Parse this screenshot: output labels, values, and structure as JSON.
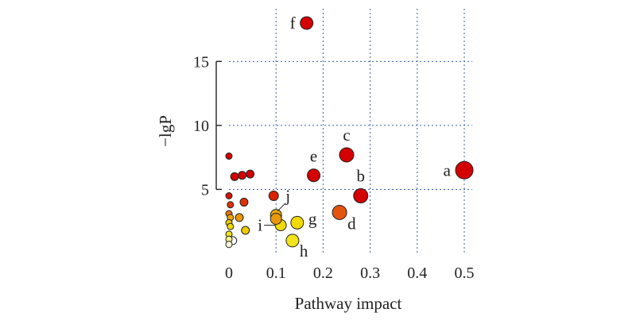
{
  "chart_data": {
    "type": "scatter",
    "xlabel": "Pathway impact",
    "ylabel": "−lgP",
    "xlim": [
      0,
      0.5
    ],
    "ylim": [
      0,
      18
    ],
    "x_ticks": [
      0,
      0.1,
      0.2,
      0.3,
      0.4,
      0.5
    ],
    "x_tick_labels": [
      "0",
      "0.1",
      "0.2",
      "0.3",
      "0.4",
      "0.5"
    ],
    "y_ticks": [
      5,
      10,
      15
    ],
    "y_tick_labels": [
      "5",
      "10",
      "15"
    ],
    "grid": true,
    "color_scale": [
      "#ffffff",
      "#f0e000",
      "#e87010",
      "#d40000"
    ],
    "points": [
      {
        "x": 0.165,
        "y": 18.0,
        "r": 8,
        "c": 1.0,
        "label": "f",
        "label_side": "left"
      },
      {
        "x": 0.5,
        "y": 6.5,
        "r": 11,
        "c": 1.0,
        "label": "a",
        "label_side": "left"
      },
      {
        "x": 0.28,
        "y": 4.5,
        "r": 9,
        "c": 1.0,
        "label": "b",
        "label_side": "above"
      },
      {
        "x": 0.25,
        "y": 7.7,
        "r": 9,
        "c": 1.0,
        "label": "c",
        "label_side": "above"
      },
      {
        "x": 0.235,
        "y": 3.2,
        "r": 9,
        "c": 0.75,
        "label": "d",
        "label_side": "below-right"
      },
      {
        "x": 0.18,
        "y": 6.1,
        "r": 8,
        "c": 1.0,
        "label": "e",
        "label_side": "above"
      },
      {
        "x": 0.145,
        "y": 2.4,
        "r": 8,
        "c": 0.35,
        "label": "g",
        "label_side": "right"
      },
      {
        "x": 0.135,
        "y": 1.0,
        "r": 8,
        "c": 0.3,
        "label": "h",
        "label_side": "below-right"
      },
      {
        "x": 0.11,
        "y": 2.2,
        "r": 7,
        "c": 0.35,
        "label": "i",
        "label_side": "leader-left"
      },
      {
        "x": 0.1,
        "y": 3.0,
        "r": 7,
        "c": 0.5,
        "label": "j",
        "label_side": "leader-up"
      },
      {
        "x": 0.1,
        "y": 2.7,
        "r": 7,
        "c": 0.55,
        "label": "",
        "label_side": ""
      },
      {
        "x": 0.095,
        "y": 4.5,
        "r": 6,
        "c": 0.9,
        "label": "",
        "label_side": ""
      },
      {
        "x": 0.0,
        "y": 7.6,
        "r": 4,
        "c": 1.0,
        "label": "",
        "label_side": ""
      },
      {
        "x": 0.012,
        "y": 6.0,
        "r": 5,
        "c": 1.0,
        "label": "",
        "label_side": ""
      },
      {
        "x": 0.028,
        "y": 6.1,
        "r": 5,
        "c": 1.0,
        "label": "",
        "label_side": ""
      },
      {
        "x": 0.045,
        "y": 6.2,
        "r": 5,
        "c": 1.0,
        "label": "",
        "label_side": ""
      },
      {
        "x": 0.0,
        "y": 4.5,
        "r": 4,
        "c": 0.95,
        "label": "",
        "label_side": ""
      },
      {
        "x": 0.003,
        "y": 3.8,
        "r": 4,
        "c": 0.85,
        "label": "",
        "label_side": ""
      },
      {
        "x": 0.032,
        "y": 4.0,
        "r": 5,
        "c": 0.85,
        "label": "",
        "label_side": ""
      },
      {
        "x": 0.0,
        "y": 3.1,
        "r": 4,
        "c": 0.65,
        "label": "",
        "label_side": ""
      },
      {
        "x": 0.003,
        "y": 2.8,
        "r": 4,
        "c": 0.5,
        "label": "",
        "label_side": ""
      },
      {
        "x": 0.0,
        "y": 2.4,
        "r": 4,
        "c": 0.4,
        "label": "",
        "label_side": ""
      },
      {
        "x": 0.003,
        "y": 2.1,
        "r": 4,
        "c": 0.35,
        "label": "",
        "label_side": ""
      },
      {
        "x": 0.022,
        "y": 2.8,
        "r": 5,
        "c": 0.55,
        "label": "",
        "label_side": ""
      },
      {
        "x": 0.035,
        "y": 1.8,
        "r": 5,
        "c": 0.4,
        "label": "",
        "label_side": ""
      },
      {
        "x": 0.0,
        "y": 1.5,
        "r": 4,
        "c": 0.3,
        "label": "",
        "label_side": ""
      },
      {
        "x": 0.0,
        "y": 1.1,
        "r": 4,
        "c": 0.15,
        "label": "",
        "label_side": ""
      },
      {
        "x": 0.008,
        "y": 1.0,
        "r": 5,
        "c": 0.0,
        "label": "",
        "label_side": ""
      },
      {
        "x": 0.0,
        "y": 0.7,
        "r": 4,
        "c": 0.05,
        "label": "",
        "label_side": ""
      }
    ]
  }
}
